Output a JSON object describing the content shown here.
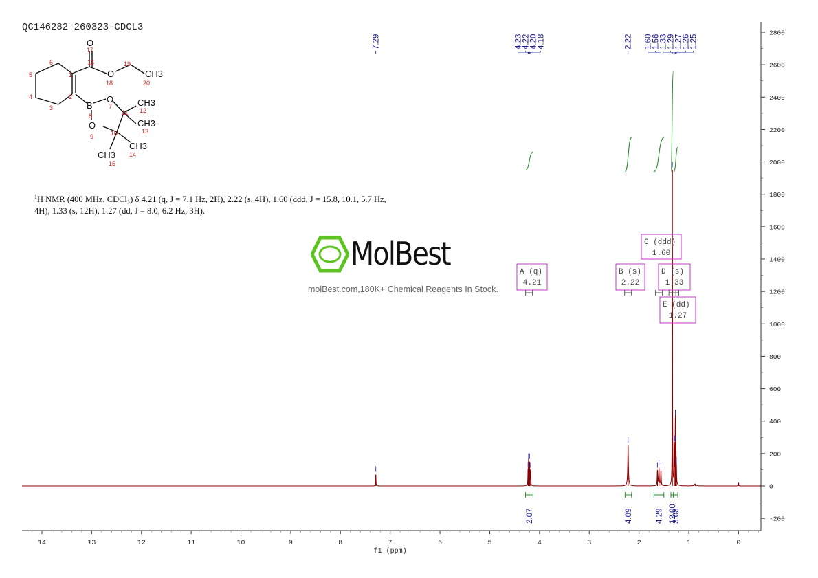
{
  "header": {
    "sample_id": "QC146282-260323-CDCL3",
    "nmr_description_lines": [
      "H NMR (400 MHz, CDCl₃) δ 4.21 (q, J = 7.1 Hz, 2H), 2.22 (s, 4H), 1.60 (ddd, J = 15.8, 10.1, 5.7 Hz,",
      "4H), 1.33 (s, 12H), 1.27 (dd, J = 8.0, 6.2 Hz, 3H)."
    ],
    "nmr_superscript": "1"
  },
  "watermark": {
    "brand": "MolBest",
    "tagline": "molBest.com,180K+ Chemical Reagents In Stock.",
    "brand_color": "#5cc41e"
  },
  "structure": {
    "atom_labels": [
      "O",
      "O",
      "B",
      "O",
      "O",
      "CH3",
      "CH3",
      "CH3",
      "CH3",
      "CH3"
    ],
    "atom_numbers": [
      "1",
      "2",
      "3",
      "4",
      "5",
      "6",
      "7",
      "8",
      "9",
      "10",
      "11",
      "12",
      "13",
      "14",
      "15",
      "16",
      "17",
      "18",
      "19",
      "20"
    ]
  },
  "chart_data": {
    "type": "line",
    "title": "",
    "xlabel": "f1 (ppm)",
    "ylabel": "",
    "xlim": [
      14.4,
      -0.45
    ],
    "ylim": [
      -280,
      2900
    ],
    "x_reversed": true,
    "x_ticks": [
      14,
      13,
      12,
      11,
      10,
      9,
      8,
      7,
      6,
      5,
      4,
      3,
      2,
      1,
      0
    ],
    "y_ticks": [
      -200,
      0,
      200,
      400,
      600,
      800,
      1000,
      1200,
      1400,
      1600,
      1800,
      2000,
      2200,
      2400,
      2600,
      2800
    ],
    "spectrum_color": "#8b0000",
    "integral_color": "#2e8b2e",
    "label_color": "#1a1a8c",
    "box_color": "#cc33cc",
    "peaks": [
      {
        "ppm": 7.29,
        "height": 70,
        "width": 0.004
      },
      {
        "ppm": 4.23,
        "height": 95,
        "width": 0.004
      },
      {
        "ppm": 4.22,
        "height": 150,
        "width": 0.004
      },
      {
        "ppm": 4.2,
        "height": 150,
        "width": 0.004
      },
      {
        "ppm": 4.18,
        "height": 95,
        "width": 0.004
      },
      {
        "ppm": 2.22,
        "height": 250,
        "width": 0.008
      },
      {
        "ppm": 1.63,
        "height": 95,
        "width": 0.006
      },
      {
        "ppm": 1.6,
        "height": 110,
        "width": 0.006
      },
      {
        "ppm": 1.56,
        "height": 95,
        "width": 0.006
      },
      {
        "ppm": 1.33,
        "height": 1950,
        "width": 0.003
      },
      {
        "ppm": 1.29,
        "height": 260,
        "width": 0.004
      },
      {
        "ppm": 1.27,
        "height": 420,
        "width": 0.004
      },
      {
        "ppm": 1.26,
        "height": 260,
        "width": 0.004
      },
      {
        "ppm": 1.25,
        "height": 120,
        "width": 0.004
      },
      {
        "ppm": 0.87,
        "height": 12,
        "width": 0.02
      },
      {
        "ppm": 0.0,
        "height": 20,
        "width": 0.004
      }
    ],
    "peak_labels": [
      "7.29",
      "4.23",
      "4.22",
      "4.20",
      "4.18",
      "2.22",
      "1.60",
      "1.56",
      "1.33",
      "1.29",
      "1.27",
      "1.26",
      "1.25"
    ],
    "peak_label_groups": [
      {
        "labels": [
          "7.29"
        ],
        "ppms": [
          7.29
        ]
      },
      {
        "labels": [
          "4.23",
          "4.22",
          "4.20",
          "4.18"
        ],
        "ppms": [
          4.23,
          4.22,
          4.2,
          4.18
        ]
      },
      {
        "labels": [
          "2.22"
        ],
        "ppms": [
          2.22
        ]
      },
      {
        "labels": [
          "1.60",
          "1.56",
          "1.33",
          "1.29",
          "1.27",
          "1.26",
          "1.25"
        ],
        "ppms": [
          1.6,
          1.56,
          1.33,
          1.29,
          1.27,
          1.26,
          1.25
        ]
      }
    ],
    "integrals": [
      {
        "from": 4.28,
        "to": 4.13,
        "value": "2.07",
        "curve_bottom": 1950,
        "curve_top": 2060
      },
      {
        "from": 2.28,
        "to": 2.15,
        "value": "4.09",
        "curve_bottom": 1940,
        "curve_top": 2150
      },
      {
        "from": 1.7,
        "to": 1.5,
        "value": "4.29",
        "curve_bottom": 1940,
        "curve_top": 2150
      },
      {
        "from": 1.36,
        "to": 1.31,
        "value": "12.00",
        "curve_bottom": 1940,
        "curve_top": 2560
      },
      {
        "from": 1.3,
        "to": 1.22,
        "value": "3.08",
        "curve_bottom": 1940,
        "curve_top": 2090
      }
    ],
    "multiplets": [
      {
        "letter": "A",
        "mult": "(q)",
        "shift": "4.21",
        "ppm": 4.21
      },
      {
        "letter": "B",
        "mult": "(s)",
        "shift": "2.22",
        "ppm": 2.22
      },
      {
        "letter": "C",
        "mult": "(ddd)",
        "shift": "1.60",
        "ppm": 1.6
      },
      {
        "letter": "D",
        "mult": "(s)",
        "shift": "1.33",
        "ppm": 1.33
      },
      {
        "letter": "E",
        "mult": "(dd)",
        "shift": "1.27",
        "ppm": 1.27
      }
    ]
  }
}
